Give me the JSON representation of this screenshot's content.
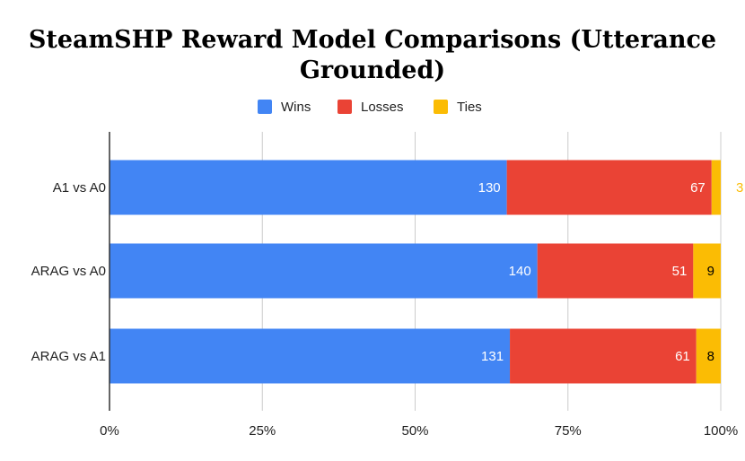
{
  "chart_data": {
    "type": "bar",
    "orientation": "horizontal",
    "stacked": "percent",
    "title": [
      "SteamSHP Reward Model Comparisons (Utterance",
      "Grounded)"
    ],
    "categories": [
      "A1 vs A0",
      "ARAG vs A0",
      "ARAG vs A1"
    ],
    "series": [
      {
        "name": "Wins",
        "values": [
          130,
          140,
          131
        ],
        "color": "#4285f4",
        "label_color": "#ffffff"
      },
      {
        "name": "Losses",
        "values": [
          67,
          51,
          61
        ],
        "color": "#ea4335",
        "label_color": "#ffffff"
      },
      {
        "name": "Ties",
        "values": [
          3,
          9,
          8
        ],
        "color": "#fbbc04",
        "label_color": "#000000"
      }
    ],
    "x_ticks": [
      "0%",
      "25%",
      "50%",
      "75%",
      "100%"
    ],
    "xlim": [
      0,
      100
    ],
    "grid": true,
    "legend_position": "top-center",
    "axis_color": "#333333",
    "grid_color": "#cccccc"
  }
}
